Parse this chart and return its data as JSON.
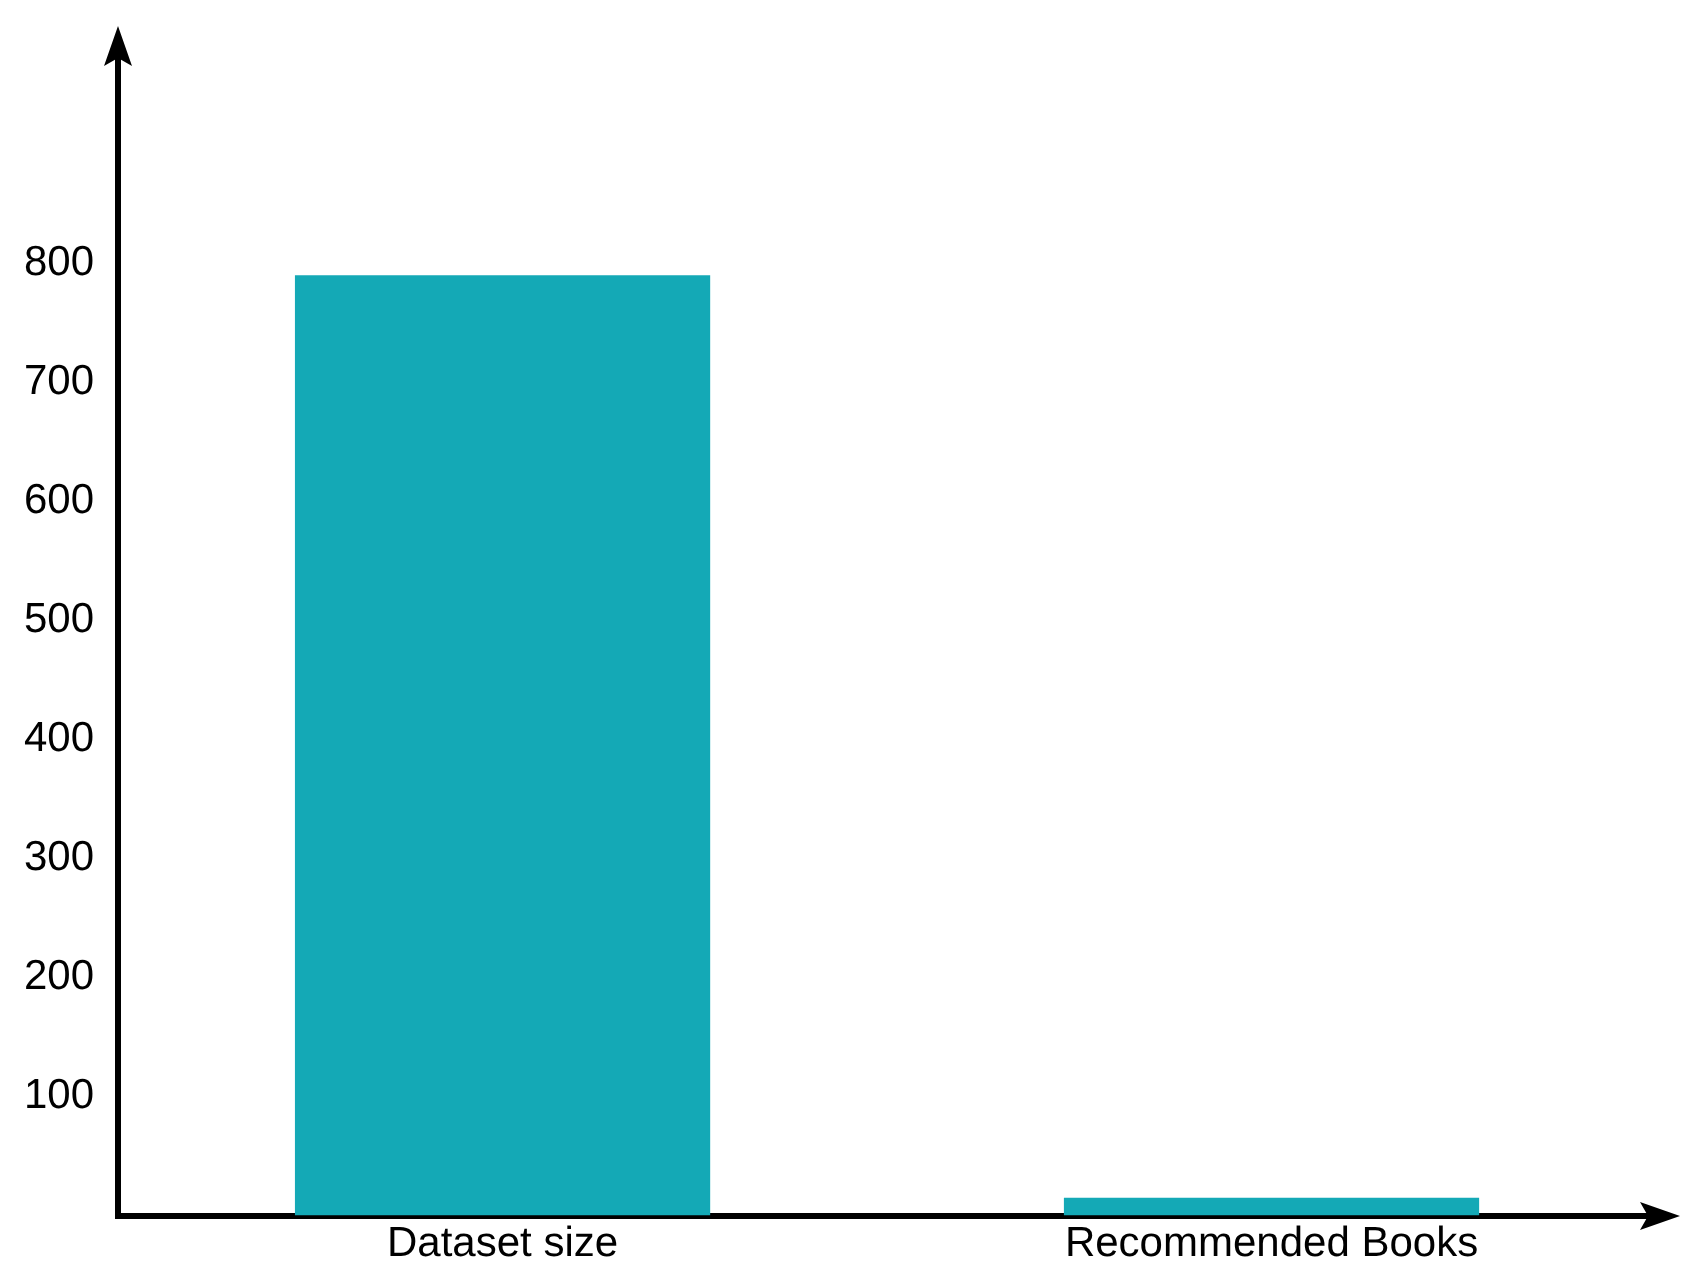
{
  "chart_data": {
    "type": "bar",
    "categories": [
      "Dataset size",
      "Recommended Books"
    ],
    "values": [
      790,
      15
    ],
    "color": "#14a9b6",
    "ylim": [
      0,
      980
    ],
    "yticks": [
      100,
      200,
      300,
      400,
      500,
      600,
      700,
      800
    ],
    "grid": false,
    "legend": false
  }
}
